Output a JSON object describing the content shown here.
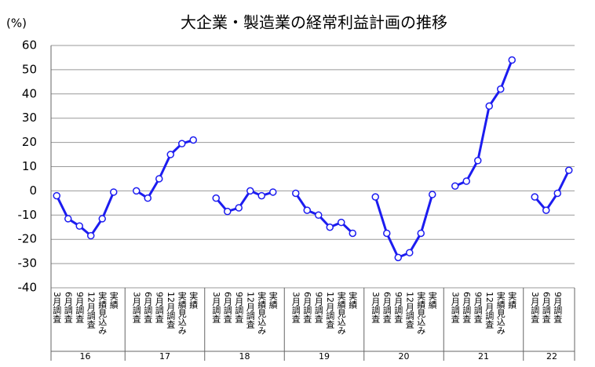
{
  "chart_data": {
    "type": "line",
    "title": "大企業・製造業の経常利益計画の推移",
    "y_label": "(%)",
    "categories": [
      "3月調査",
      "6月調査",
      "9月調査",
      "12月調査",
      "実績見込み",
      "実績",
      null,
      "3月調査",
      "6月調査",
      "9月調査",
      "12月調査",
      "実績見込み",
      "実績",
      null,
      "3月調査",
      "6月調査",
      "9月調査",
      "12月調査",
      "実績見込み",
      "実績",
      null,
      "3月調査",
      "6月調査",
      "9月調査",
      "12月調査",
      "実績見込み",
      "実績",
      null,
      "3月調査",
      "6月調査",
      "9月調査",
      "12月調査",
      "実績見込み",
      "実績",
      null,
      "3月調査",
      "6月調査",
      "9月調査",
      "12月調査",
      "実績見込み",
      "実績",
      null,
      "3月調査",
      "6月調査",
      "9月調査",
      null
    ],
    "groups": [
      "16",
      "17",
      "18",
      "19",
      "20",
      "21",
      "22"
    ],
    "series": [
      {
        "color": "#1c1cf0",
        "values": [
          -2,
          -11.5,
          -14.5,
          -18.5,
          -11.5,
          -0.5,
          null,
          0,
          -3,
          5,
          15,
          19.5,
          21,
          null,
          -3,
          -8.5,
          -7,
          0,
          -2,
          -0.5,
          null,
          -1,
          -8,
          -10,
          -15,
          -13,
          -17.5,
          null,
          -2.5,
          -17.5,
          -27.5,
          -25.5,
          -17.5,
          -1.5,
          null,
          2,
          4,
          12.5,
          35,
          42,
          54,
          null,
          -2.5,
          -8,
          -1,
          8.5
        ]
      }
    ],
    "ylim": [
      -40,
      60
    ],
    "yticks": [
      -40,
      -30,
      -20,
      -10,
      0,
      10,
      20,
      30,
      40,
      50,
      60
    ],
    "grid": true
  }
}
